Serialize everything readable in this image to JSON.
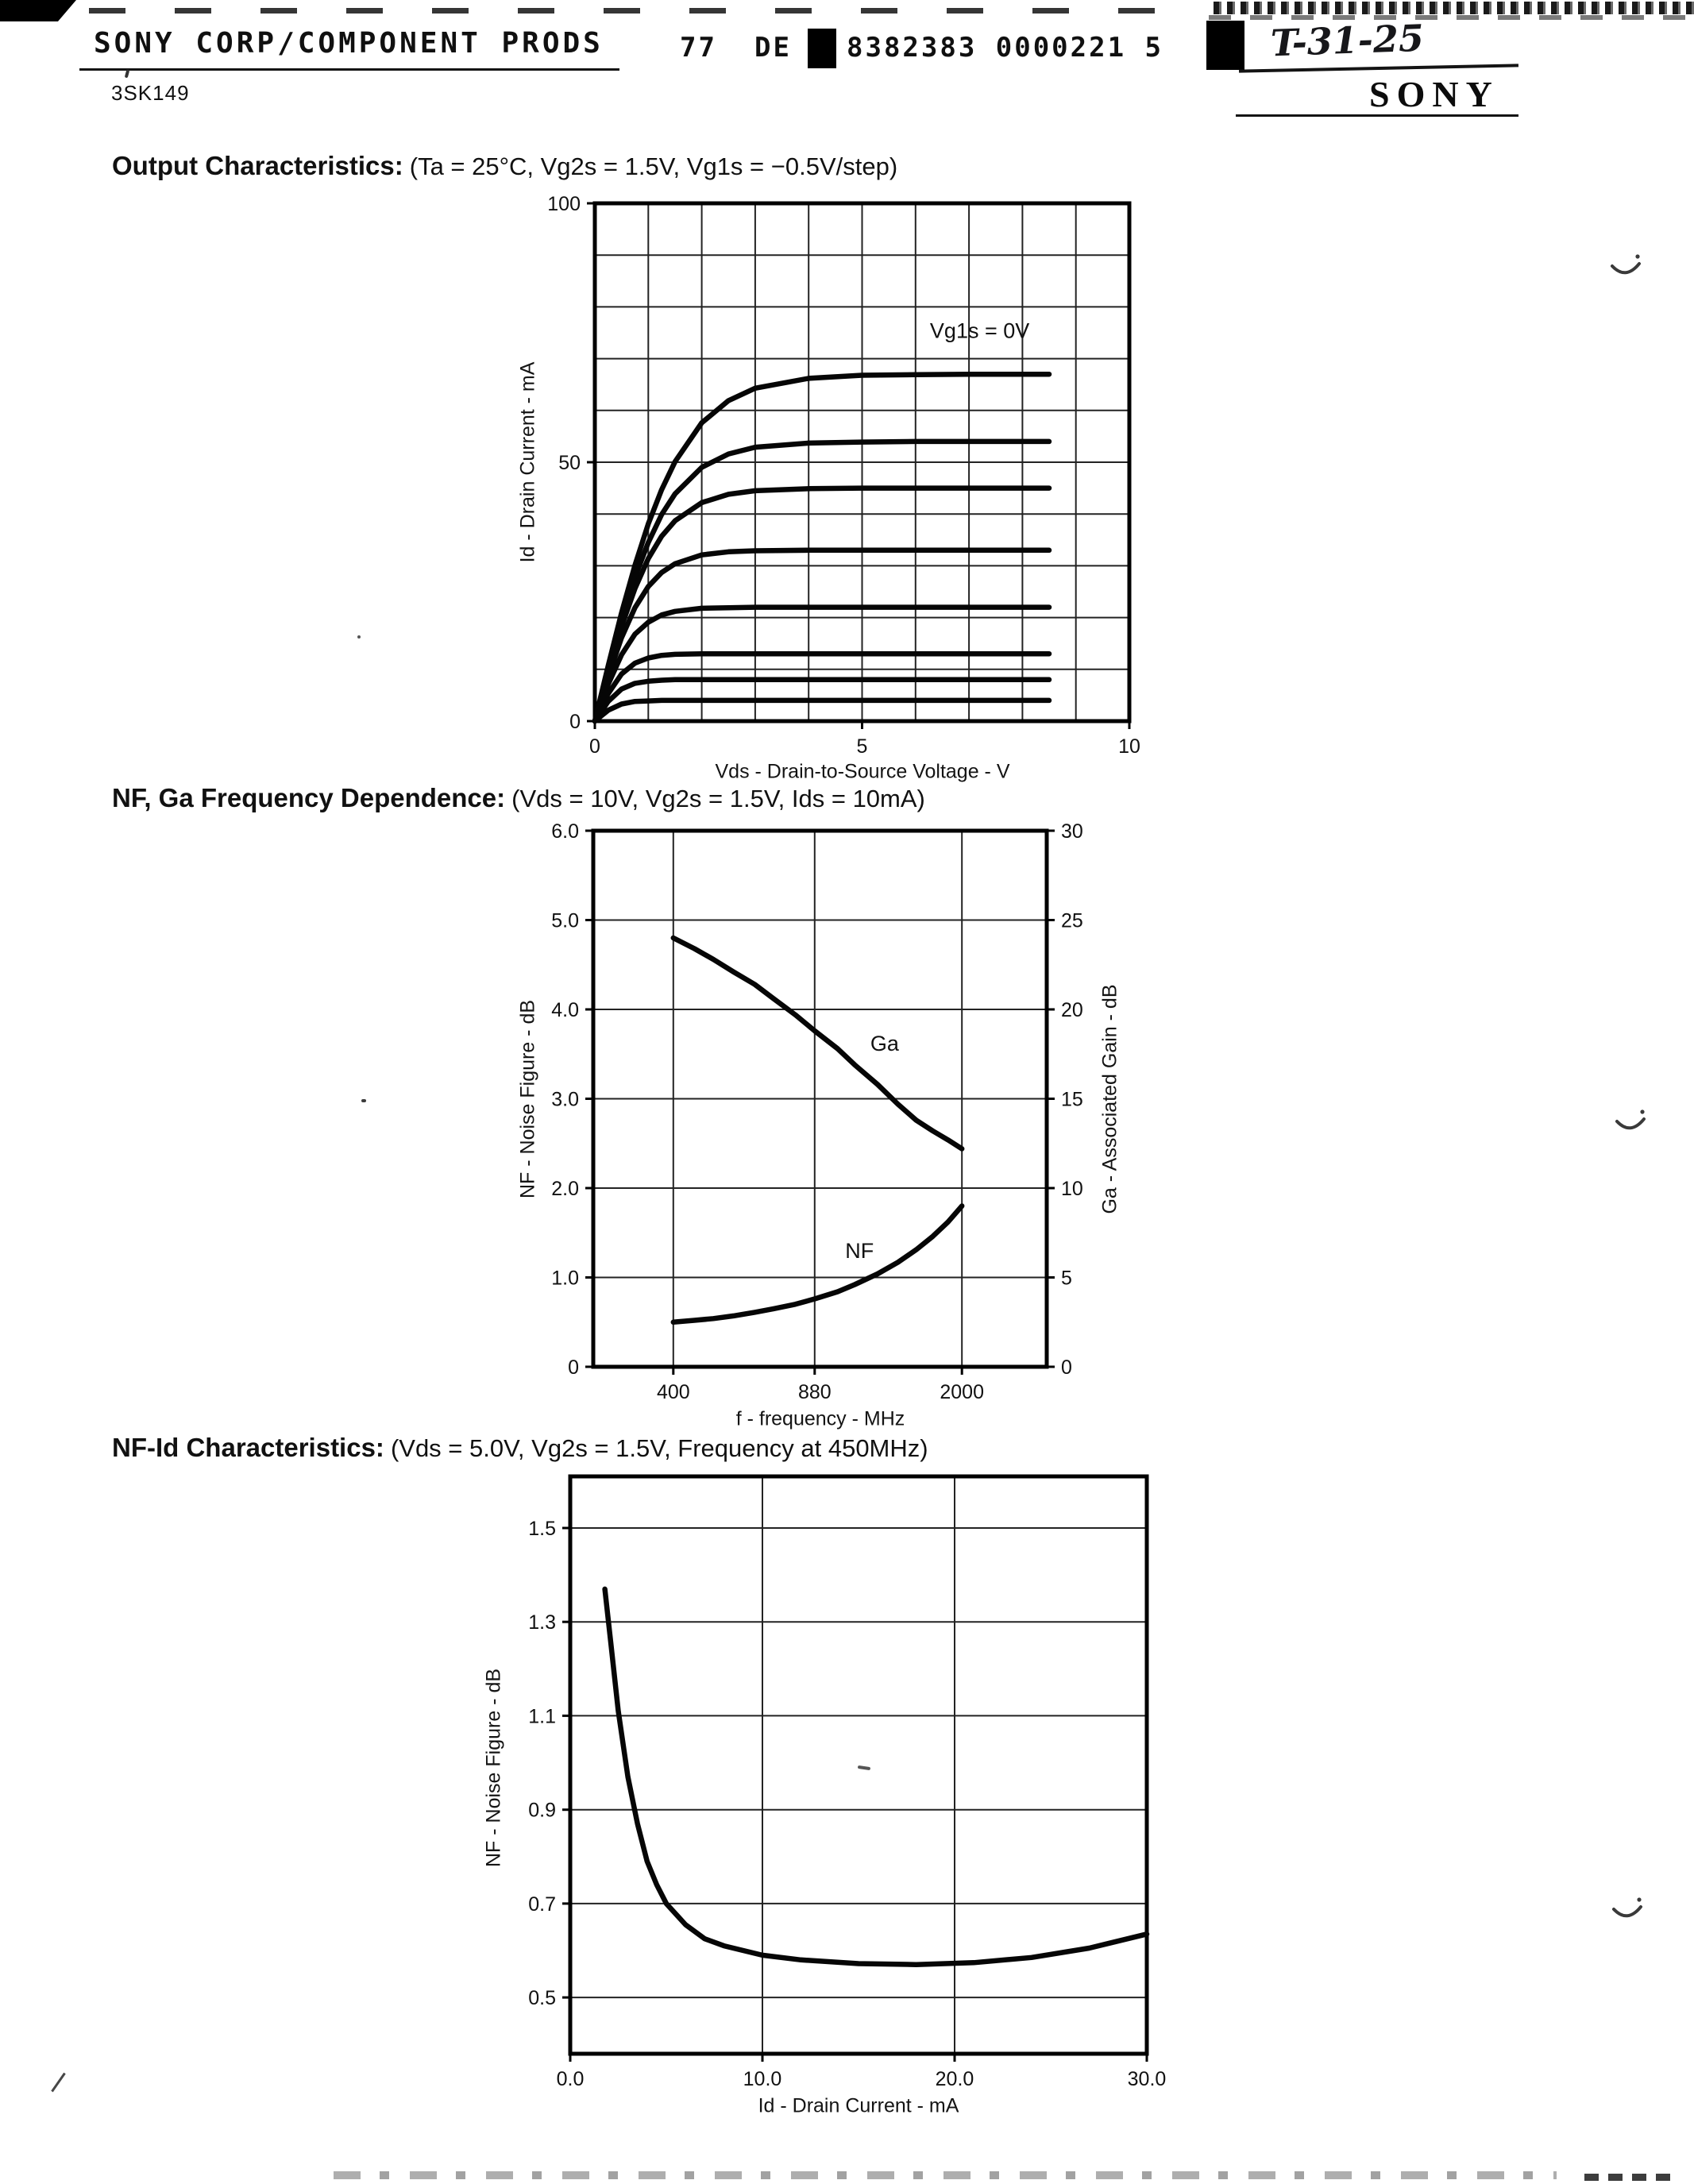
{
  "page": {
    "header": {
      "vendor_line": "SONY CORP/COMPONENT PRODS",
      "stamp_number": "77",
      "stamp_de": "DE",
      "stamp_code": "8382383 0000221 5",
      "handwritten_ref": "T-31-25",
      "brand_logo": "SONY",
      "part_number": "3SK149"
    },
    "sections": [
      {
        "title": "Output Characteristics:",
        "conditions": "(Ta = 25°C, Vg2s = 1.5V, Vg1s = −0.5V/step)"
      },
      {
        "title": "NF, Ga Frequency Dependence:",
        "conditions": "(Vds = 10V, Vg2s = 1.5V, Ids = 10mA)"
      },
      {
        "title": "NF-Id Characteristics:",
        "conditions": "(Vds = 5.0V, Vg2s = 1.5V, Frequency at 450MHz)"
      }
    ]
  },
  "chart_data": [
    {
      "id": "output-characteristics",
      "type": "line",
      "title": "Output Characteristics",
      "conditions": "Ta = 25°C, Vg2s = 1.5V, Vg1s = −0.5V/step",
      "xlabel": "Vds - Drain-to-Source Voltage - V",
      "ylabel": "Id - Drain Current - mA",
      "xlim": [
        0,
        10
      ],
      "ylim": [
        0,
        100
      ],
      "xtick_values": [
        0,
        5,
        10
      ],
      "xtick_labels": [
        "0",
        "5",
        "10"
      ],
      "ytick_values": [
        0,
        50,
        100
      ],
      "ytick_labels": [
        "0",
        "50",
        "100"
      ],
      "xgrid": [
        1,
        2,
        3,
        4,
        5,
        6,
        7,
        8,
        9
      ],
      "ygrid": [
        10,
        20,
        30,
        40,
        50,
        60,
        70,
        80,
        90
      ],
      "x": [
        0,
        0.25,
        0.5,
        0.75,
        1,
        1.25,
        1.5,
        2,
        2.5,
        3,
        4,
        5,
        6,
        7,
        8.5
      ],
      "series": [
        {
          "name": "Vg1s 0V",
          "values": [
            0,
            10.7,
            20.9,
            30.1,
            38.1,
            44.7,
            50.1,
            57.6,
            61.9,
            64.3,
            66.2,
            66.8,
            66.9,
            67,
            67
          ]
        },
        {
          "name": "Vg1s -0.5V",
          "values": [
            0,
            10.1,
            19.5,
            27.8,
            34.5,
            39.9,
            43.9,
            49,
            51.6,
            52.9,
            53.7,
            53.9,
            54,
            54,
            54
          ]
        },
        {
          "name": "Vg1s -1.0V",
          "values": [
            0,
            9.5,
            18.3,
            25.6,
            31.4,
            35.7,
            38.7,
            42.2,
            43.8,
            44.5,
            44.9,
            45,
            45,
            45,
            45
          ]
        },
        {
          "name": "Vg1s -1.5V",
          "values": [
            0,
            8.6,
            16.1,
            21.9,
            26,
            28.7,
            30.4,
            32.1,
            32.7,
            32.9,
            33,
            33,
            33,
            33,
            33
          ]
        },
        {
          "name": "Vg1s -2.0V",
          "values": [
            0,
            7.1,
            12.8,
            16.8,
            19.1,
            20.5,
            21.2,
            21.8,
            21.9,
            22,
            22,
            22,
            22,
            22,
            22
          ]
        },
        {
          "name": "Vg1s -2.5V",
          "values": [
            0,
            5.3,
            9.1,
            11.2,
            12.2,
            12.7,
            12.9,
            13,
            13,
            13,
            13,
            13,
            13,
            13,
            13
          ]
        },
        {
          "name": "Vg1s -3.0V",
          "values": [
            0,
            3.8,
            6.2,
            7.3,
            7.7,
            7.9,
            8,
            8,
            8,
            8,
            8,
            8,
            8,
            8,
            8
          ]
        },
        {
          "name": "Vg1s -3.5V",
          "values": [
            0,
            2.1,
            3.3,
            3.8,
            3.9,
            4,
            4,
            4,
            4,
            4,
            4,
            4,
            4,
            4,
            4
          ]
        }
      ],
      "annotations": [
        {
          "text": "Vg1s = 0V",
          "x": 7.2,
          "y": 74
        }
      ]
    },
    {
      "id": "nf-ga-frequency-dependence",
      "type": "line",
      "title": "NF, Ga Frequency Dependence",
      "conditions": "Vds = 10V, Vg2s = 1.5V, Ids = 10mA",
      "xlabel": "f - frequency - MHz",
      "ylabel": "NF - Noise Figure - dB",
      "ylabel2": "Ga - Associated Gain - dB",
      "xscale": "log",
      "xlim": [
        256,
        3210
      ],
      "ylim": [
        0,
        6
      ],
      "y2lim": [
        0,
        30
      ],
      "xtick_values": [
        400,
        880,
        2000
      ],
      "xtick_labels": [
        "400",
        "880",
        "2000"
      ],
      "ytick_values": [
        0,
        1,
        2,
        3,
        4,
        5,
        6
      ],
      "ytick_labels": [
        "0",
        "1.0",
        "2.0",
        "3.0",
        "4.0",
        "5.0",
        "6.0"
      ],
      "y2tick_values": [
        0,
        5,
        10,
        15,
        20,
        25,
        30
      ],
      "y2tick_labels": [
        "0",
        "5",
        "10",
        "15",
        "20",
        "25",
        "30"
      ],
      "xgrid": [
        400,
        880,
        2000
      ],
      "ygrid": [
        1,
        2,
        3,
        4,
        5
      ],
      "series": [
        {
          "name": "Ga",
          "axis": "y2",
          "x": [
            400,
            450,
            500,
            560,
            630,
            700,
            790,
            880,
            1000,
            1100,
            1250,
            1400,
            1550,
            1700,
            1850,
            2000
          ],
          "values": [
            24,
            23.4,
            22.8,
            22.1,
            21.4,
            20.6,
            19.7,
            18.8,
            17.8,
            16.9,
            15.8,
            14.7,
            13.8,
            13.2,
            12.7,
            12.2
          ]
        },
        {
          "name": "NF",
          "axis": "y",
          "x": [
            400,
            450,
            500,
            560,
            630,
            700,
            790,
            880,
            1000,
            1100,
            1250,
            1400,
            1550,
            1700,
            1850,
            2000
          ],
          "values": [
            0.5,
            0.52,
            0.54,
            0.57,
            0.61,
            0.65,
            0.7,
            0.76,
            0.84,
            0.92,
            1.04,
            1.17,
            1.31,
            1.46,
            1.62,
            1.8
          ]
        }
      ],
      "annotations": [
        {
          "text": "Ga",
          "x": 1300,
          "y": 3.54
        },
        {
          "text": "NF",
          "x": 1130,
          "y": 1.22
        }
      ]
    },
    {
      "id": "nf-id-characteristics",
      "type": "line",
      "title": "NF-Id Characteristics",
      "conditions": "Vds = 5.0V, Vg2s = 1.5V, Frequency at 450MHz",
      "xlabel": "Id - Drain Current - mA",
      "ylabel": "NF - Noise Figure - dB",
      "xlim": [
        0,
        30
      ],
      "ylim": [
        0.38,
        1.61
      ],
      "xtick_values": [
        0,
        10,
        20,
        30
      ],
      "xtick_labels": [
        "0.0",
        "10.0",
        "20.0",
        "30.0"
      ],
      "ytick_values": [
        0.5,
        0.7,
        0.9,
        1.1,
        1.3,
        1.5
      ],
      "ytick_labels": [
        "0.5",
        "0.7",
        "0.9",
        "1.1",
        "1.3",
        "1.5"
      ],
      "xgrid": [
        10,
        20
      ],
      "ygrid": [
        0.5,
        0.7,
        0.9,
        1.1,
        1.3,
        1.5
      ],
      "series": [
        {
          "name": "NF",
          "x": [
            1.8,
            2.1,
            2.5,
            3,
            3.5,
            4,
            4.5,
            5,
            6,
            7,
            8,
            10,
            12,
            15,
            18,
            21,
            24,
            27,
            30
          ],
          "values": [
            1.37,
            1.26,
            1.11,
            0.97,
            0.87,
            0.79,
            0.74,
            0.7,
            0.655,
            0.625,
            0.61,
            0.59,
            0.58,
            0.572,
            0.57,
            0.574,
            0.585,
            0.605,
            0.635
          ]
        }
      ],
      "annotations": []
    }
  ]
}
